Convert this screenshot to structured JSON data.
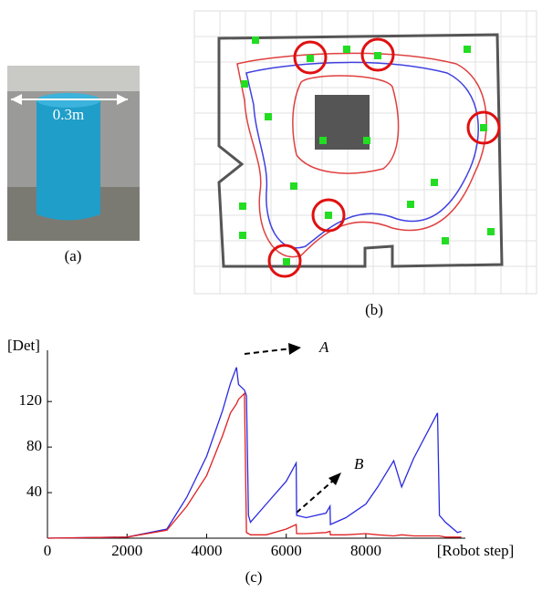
{
  "photo": {
    "dimension_label": "0.3m",
    "caption": "(a)"
  },
  "map": {
    "caption": "(b)"
  },
  "chart_data": {
    "type": "line",
    "y_label": "[Det]",
    "x_label": "[Robot step]",
    "caption": "(c)",
    "annotations": [
      "A",
      "B"
    ],
    "x": [
      0,
      2000,
      3000,
      3500,
      4000,
      4400,
      4600,
      4750,
      4800,
      4950,
      5000,
      5050,
      5100,
      5500,
      6000,
      6250,
      6260,
      6500,
      7000,
      7100,
      7110,
      7500,
      8000,
      8300,
      8700,
      8900,
      9200,
      9800,
      9850,
      10000,
      10300,
      10400
    ],
    "series": [
      {
        "color": "#2a2ae0",
        "values": [
          0,
          1,
          8,
          36,
          72,
          112,
          136,
          150,
          135,
          130,
          125,
          20,
          14,
          30,
          50,
          66,
          20,
          18,
          22,
          28,
          12,
          18,
          30,
          45,
          68,
          45,
          70,
          110,
          20,
          14,
          5,
          6
        ]
      },
      {
        "color": "#e02020",
        "values": [
          0,
          1,
          7,
          28,
          55,
          90,
          110,
          118,
          122,
          127,
          5,
          4,
          3,
          3,
          8,
          12,
          4,
          4,
          5,
          6,
          3,
          3,
          4,
          3,
          2,
          3,
          2,
          2,
          2,
          1,
          1,
          1
        ]
      }
    ],
    "xlim": [
      0,
      10500
    ],
    "ylim": [
      0,
      165
    ],
    "xticks": [
      0,
      2000,
      4000,
      6000,
      8000
    ],
    "yticks": [
      40,
      80,
      120
    ]
  }
}
